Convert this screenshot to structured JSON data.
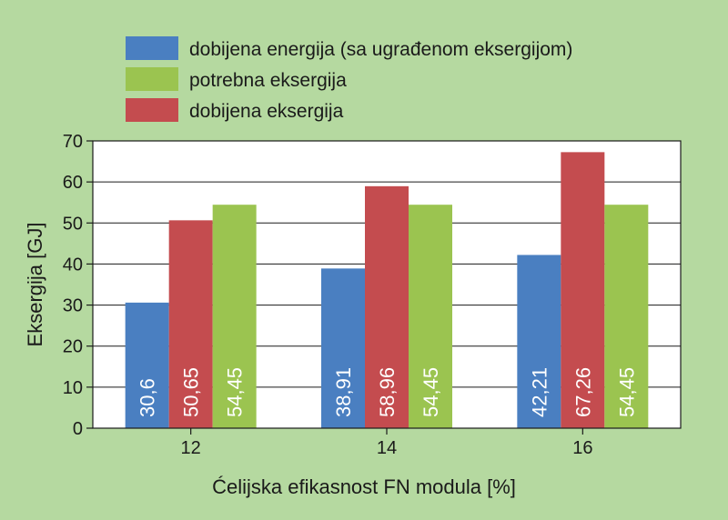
{
  "chart_data": {
    "type": "bar",
    "title": "",
    "xlabel": "Ćelijska efikasnost FN modula [%]",
    "ylabel": "Eksergija [GJ]",
    "categories": [
      "12",
      "14",
      "16"
    ],
    "ylim": [
      0,
      70
    ],
    "yticks": [
      0,
      10,
      20,
      30,
      40,
      50,
      60,
      70
    ],
    "grid": true,
    "legend_position": "top",
    "series": [
      {
        "name": "dobijena energija (sa ugrađenom eksergijom)",
        "color": "#4a7fc1",
        "values": [
          30.6,
          38.91,
          42.21
        ],
        "labels": [
          "30,6",
          "38,91",
          "42,21"
        ]
      },
      {
        "name": "dobijena eksergija",
        "color": "#c44c4f",
        "values": [
          50.65,
          58.96,
          67.26
        ],
        "labels": [
          "50,65",
          "58,96",
          "67,26"
        ]
      },
      {
        "name": "potrebna eksergija",
        "color": "#9bc450",
        "values": [
          54.45,
          54.45,
          54.45
        ],
        "labels": [
          "54,45",
          "54,45",
          "54,45"
        ]
      }
    ],
    "legend_order": [
      0,
      2,
      1
    ]
  }
}
